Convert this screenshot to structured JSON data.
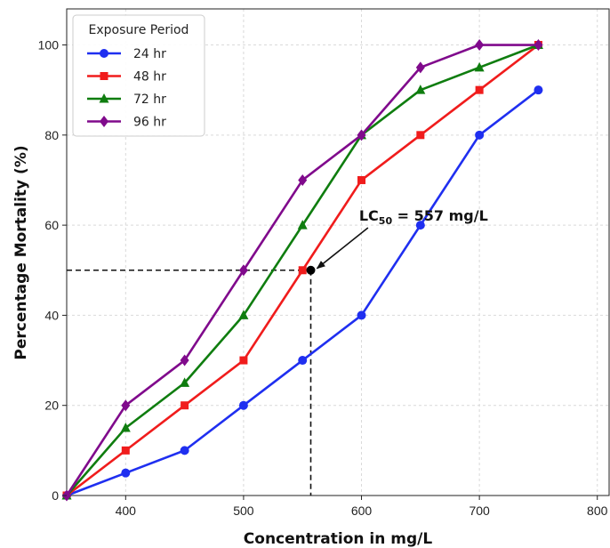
{
  "chart_data": {
    "type": "line",
    "xlabel": "Concentration in mg/L",
    "ylabel": "Percentage Mortality (%)",
    "xlim": [
      350,
      810
    ],
    "ylim": [
      0,
      108
    ],
    "xticks": [
      400,
      500,
      600,
      700,
      800
    ],
    "yticks": [
      0,
      20,
      40,
      60,
      80,
      100
    ],
    "grid": true,
    "legend": {
      "title": "Exposure Period",
      "placement": "top-left"
    },
    "x": [
      350,
      400,
      450,
      500,
      550,
      600,
      650,
      700,
      750
    ],
    "series": [
      {
        "name": "24 hr",
        "color": "#1f2ff0",
        "marker": "circle",
        "values": [
          0,
          5,
          10,
          20,
          30,
          40,
          60,
          80,
          90
        ]
      },
      {
        "name": "48 hr",
        "color": "#f01c1c",
        "marker": "square",
        "values": [
          0,
          10,
          20,
          30,
          50,
          70,
          80,
          90,
          100
        ]
      },
      {
        "name": "72 hr",
        "color": "#0f7d0f",
        "marker": "triangle",
        "values": [
          0,
          15,
          25,
          40,
          60,
          80,
          90,
          95,
          100
        ]
      },
      {
        "name": "96 hr",
        "color": "#800a8c",
        "marker": "diamond",
        "values": [
          0,
          20,
          30,
          50,
          70,
          80,
          95,
          100,
          100
        ]
      }
    ],
    "annotation": {
      "label_main": "LC",
      "label_sub": "50",
      "label_rest": " = 557 mg/L",
      "point": [
        557,
        50
      ],
      "text_at": [
        598,
        61
      ]
    }
  }
}
